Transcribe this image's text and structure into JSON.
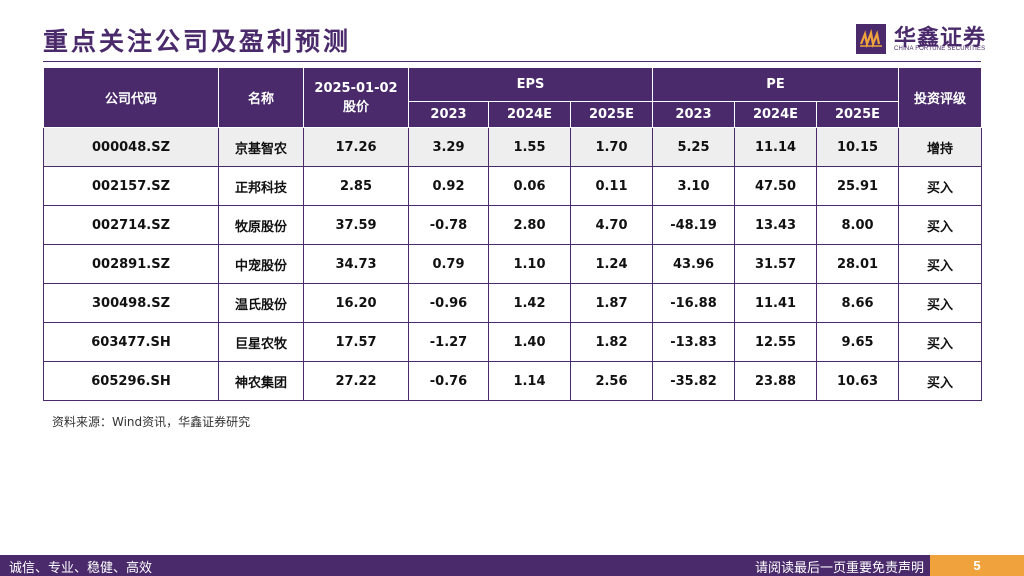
{
  "title": "重点关注公司及盈利预测",
  "logo": {
    "cn": "华鑫证券",
    "en": "CHINA FORTUNE SECURITIES",
    "mark": "ꟷ"
  },
  "table": {
    "headers": {
      "code": "公司代码",
      "name": "名称",
      "price_date": "2025-01-02",
      "price_label": "股价",
      "eps": "EPS",
      "pe": "PE",
      "rating": "投资评级",
      "years": [
        "2023",
        "2024E",
        "2025E"
      ]
    },
    "rows": [
      {
        "code": "000048.SZ",
        "name": "京基智农",
        "price": "17.26",
        "eps": [
          "3.29",
          "1.55",
          "1.70"
        ],
        "pe": [
          "5.25",
          "11.14",
          "10.15"
        ],
        "rating": "增持"
      },
      {
        "code": "002157.SZ",
        "name": "正邦科技",
        "price": "2.85",
        "eps": [
          "0.92",
          "0.06",
          "0.11"
        ],
        "pe": [
          "3.10",
          "47.50",
          "25.91"
        ],
        "rating": "买入"
      },
      {
        "code": "002714.SZ",
        "name": "牧原股份",
        "price": "37.59",
        "eps": [
          "-0.78",
          "2.80",
          "4.70"
        ],
        "pe": [
          "-48.19",
          "13.43",
          "8.00"
        ],
        "rating": "买入"
      },
      {
        "code": "002891.SZ",
        "name": "中宠股份",
        "price": "34.73",
        "eps": [
          "0.79",
          "1.10",
          "1.24"
        ],
        "pe": [
          "43.96",
          "31.57",
          "28.01"
        ],
        "rating": "买入"
      },
      {
        "code": "300498.SZ",
        "name": "温氏股份",
        "price": "16.20",
        "eps": [
          "-0.96",
          "1.42",
          "1.87"
        ],
        "pe": [
          "-16.88",
          "11.41",
          "8.66"
        ],
        "rating": "买入"
      },
      {
        "code": "603477.SH",
        "name": "巨星农牧",
        "price": "17.57",
        "eps": [
          "-1.27",
          "1.40",
          "1.82"
        ],
        "pe": [
          "-13.83",
          "12.55",
          "9.65"
        ],
        "rating": "买入"
      },
      {
        "code": "605296.SH",
        "name": "神农集团",
        "price": "27.22",
        "eps": [
          "-0.76",
          "1.14",
          "2.56"
        ],
        "pe": [
          "-35.82",
          "23.88",
          "10.63"
        ],
        "rating": "买入"
      }
    ]
  },
  "source": "资料来源：Wind资讯，华鑫证券研究",
  "footer": {
    "left": "诚信、专业、稳健、高效",
    "right": "请阅读最后一页重要免责声明",
    "page": "5"
  },
  "colors": {
    "primary": "#4a2a6b",
    "accent": "#f0a33c",
    "highlight_row": "#eeeeef"
  }
}
